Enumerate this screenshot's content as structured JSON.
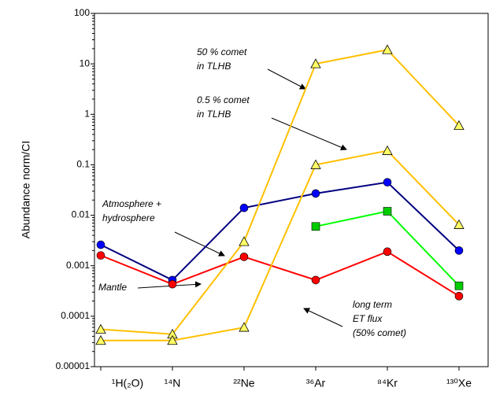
{
  "chart_data": {
    "type": "line",
    "y_label": "Abundance norm/CI",
    "log_y": true,
    "categories": [
      "¹H(₂O)",
      "¹⁴N",
      "²²Ne",
      "³⁶Ar",
      "⁸⁴Kr",
      "¹³⁰Xe"
    ],
    "ylim": [
      1e-05,
      100
    ],
    "yticks": [
      1e-05,
      0.0001,
      0.001,
      0.01,
      0.1,
      1,
      10,
      100
    ],
    "series": [
      {
        "line_color": "#000080",
        "color": "#0000ff",
        "marker": "circle",
        "values": [
          0.0026,
          0.00052,
          0.014,
          0.027,
          0.045,
          0.002
        ]
      },
      {
        "line_color": "#ff0000",
        "color": "#ff0000",
        "marker": "circle",
        "values": [
          0.0016,
          0.00043,
          0.0015,
          0.00052,
          0.0019,
          0.00025
        ]
      },
      {
        "line_color": "#ffc000",
        "color": "#ffff66",
        "marker": "triangle",
        "values": [
          5.5e-05,
          4.4e-05,
          0.003,
          10,
          19,
          0.6
        ]
      },
      {
        "line_color": "#ffc000",
        "color": "#ffff66",
        "marker": "triangle",
        "values": [
          3.3e-05,
          3.3e-05,
          6e-05,
          0.1,
          0.19,
          0.0065
        ]
      },
      {
        "line_color": "#00ff00",
        "color": "#00cc00",
        "marker": "square",
        "values": [
          null,
          null,
          null,
          0.006,
          0.012,
          0.0004
        ]
      }
    ],
    "annotations": [
      {
        "lines": [
          "50 % comet",
          "in TLHB"
        ]
      },
      {
        "lines": [
          "0.5 % comet",
          "in TLHB"
        ]
      },
      {
        "lines": [
          "Atmosphere +",
          "hydrosphere"
        ]
      },
      {
        "lines": [
          "Mantle"
        ]
      },
      {
        "lines": [
          "long term",
          "ET flux",
          "(50% comet)"
        ]
      }
    ]
  }
}
